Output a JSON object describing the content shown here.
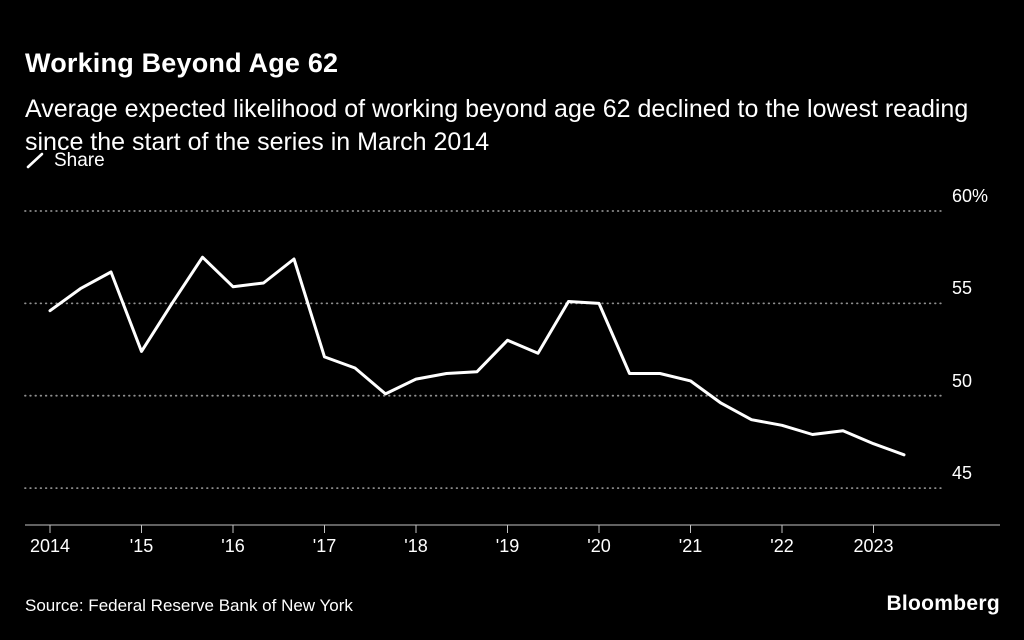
{
  "chart_data": {
    "type": "line",
    "title": "Working Beyond Age 62",
    "subtitle": "Average expected likelihood of working beyond age 62 declined to the lowest reading since the start of the series in March 2014",
    "legend": {
      "label": "Share",
      "marker": "diagonal-line"
    },
    "x": [
      "Mar 2014",
      "Jul 2014",
      "Nov 2014",
      "Mar 2015",
      "Jul 2015",
      "Nov 2015",
      "Mar 2016",
      "Jul 2016",
      "Nov 2016",
      "Mar 2017",
      "Jul 2017",
      "Nov 2017",
      "Mar 2018",
      "Jul 2018",
      "Nov 2018",
      "Mar 2019",
      "Jul 2019",
      "Nov 2019",
      "Mar 2020",
      "Jul 2020",
      "Nov 2020",
      "Mar 2021",
      "Jul 2021",
      "Nov 2021",
      "Mar 2022",
      "Jul 2022",
      "Nov 2022",
      "Mar 2023",
      "Jul 2023"
    ],
    "series": [
      {
        "name": "Share",
        "values": [
          54.6,
          55.8,
          56.7,
          52.4,
          55.0,
          57.5,
          55.9,
          56.1,
          57.4,
          52.1,
          51.5,
          50.1,
          50.9,
          51.2,
          51.3,
          53.0,
          52.3,
          55.1,
          55.0,
          51.2,
          51.2,
          50.8,
          49.6,
          48.7,
          48.4,
          47.9,
          48.1,
          47.4,
          46.8
        ]
      }
    ],
    "x_tick_labels": [
      "2014",
      "'15",
      "'16",
      "'17",
      "'18",
      "'19",
      "'20",
      "'21",
      "'22",
      "2023"
    ],
    "y_ticks": [
      60,
      55,
      50,
      45
    ],
    "y_tick_labels": [
      "60%",
      "55",
      "50",
      "45"
    ],
    "ylim": [
      43,
      60.5
    ],
    "xlabel": "",
    "ylabel": "",
    "grid": "horizontal-dotted",
    "legend_position": "top-left",
    "colors": {
      "background": "#000000",
      "line": "#ffffff",
      "grid": "#8f8f8f",
      "axis": "#c4c4c4",
      "text": "#ffffff"
    }
  },
  "footer": {
    "source": "Source: Federal Reserve Bank of New York",
    "brand": "Bloomberg"
  }
}
